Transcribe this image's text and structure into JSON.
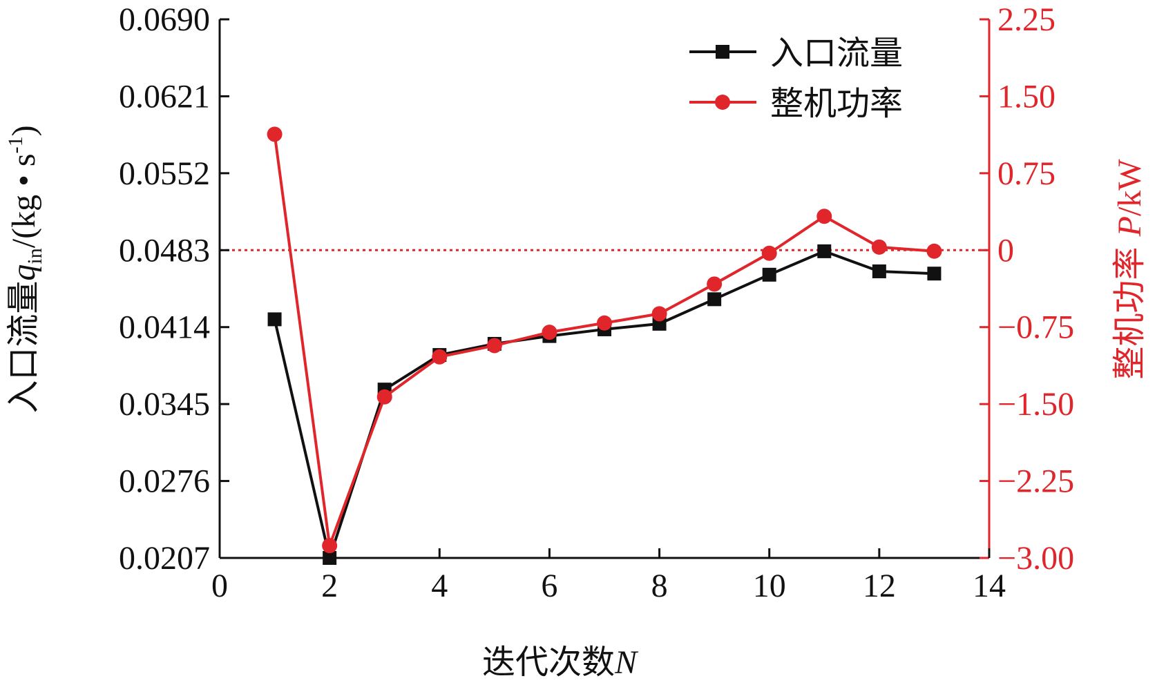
{
  "colors": {
    "flow": "#111111",
    "power": "#e0252b",
    "axis_left": "#111111",
    "axis_right": "#e0252b",
    "reference_line": "#e0252b"
  },
  "chart_data": {
    "type": "line",
    "x": [
      1,
      2,
      3,
      4,
      5,
      6,
      7,
      8,
      9,
      10,
      11,
      12,
      13
    ],
    "xlim": [
      0,
      14
    ],
    "x_ticks": [
      "0",
      "2",
      "4",
      "6",
      "8",
      "10",
      "12",
      "14"
    ],
    "x_tick_values": [
      0,
      2,
      4,
      6,
      8,
      10,
      12,
      14
    ],
    "xlabel_parts": {
      "text": "迭代次数",
      "var": "N"
    },
    "y_left": {
      "label_parts": {
        "text": "入口流量",
        "var": "q",
        "sub": "in",
        "unit_a": "/(kg • s",
        "sup": "-1",
        "unit_b": ")"
      },
      "lim": [
        0.0207,
        0.069
      ],
      "ticks": [
        "0.0207",
        "0.0276",
        "0.0345",
        "0.0414",
        "0.0483",
        "0.0552",
        "0.0621",
        "0.0690"
      ],
      "tick_values": [
        0.0207,
        0.0276,
        0.0345,
        0.0414,
        0.0483,
        0.0552,
        0.0621,
        0.069
      ]
    },
    "y_right": {
      "label_parts": {
        "text": "整机功率 ",
        "var": "P",
        "unit": "/kW"
      },
      "lim": [
        -3.0,
        2.25
      ],
      "ticks": [
        "−3.00",
        "−2.25",
        "−1.50",
        "−0.75",
        "0",
        "0.75",
        "1.50",
        "2.25"
      ],
      "tick_values": [
        -3.0,
        -2.25,
        -1.5,
        -0.75,
        0,
        0.75,
        1.5,
        2.25
      ]
    },
    "reference_line": {
      "axis": "right",
      "value": 0,
      "style": "dotted"
    },
    "series": [
      {
        "name": "入口流量",
        "axis": "left",
        "marker": "square",
        "values": [
          0.0421,
          0.0207,
          0.0358,
          0.0389,
          0.0399,
          0.0406,
          0.0412,
          0.0417,
          0.0439,
          0.0461,
          0.0482,
          0.0464,
          0.0462
        ]
      },
      {
        "name": "整机功率",
        "axis": "right",
        "marker": "circle",
        "values": [
          1.13,
          -2.88,
          -1.43,
          -1.04,
          -0.93,
          -0.8,
          -0.71,
          -0.62,
          -0.33,
          -0.03,
          0.33,
          0.03,
          -0.01
        ]
      }
    ],
    "legend": {
      "position": "top-right"
    },
    "grid": false
  }
}
